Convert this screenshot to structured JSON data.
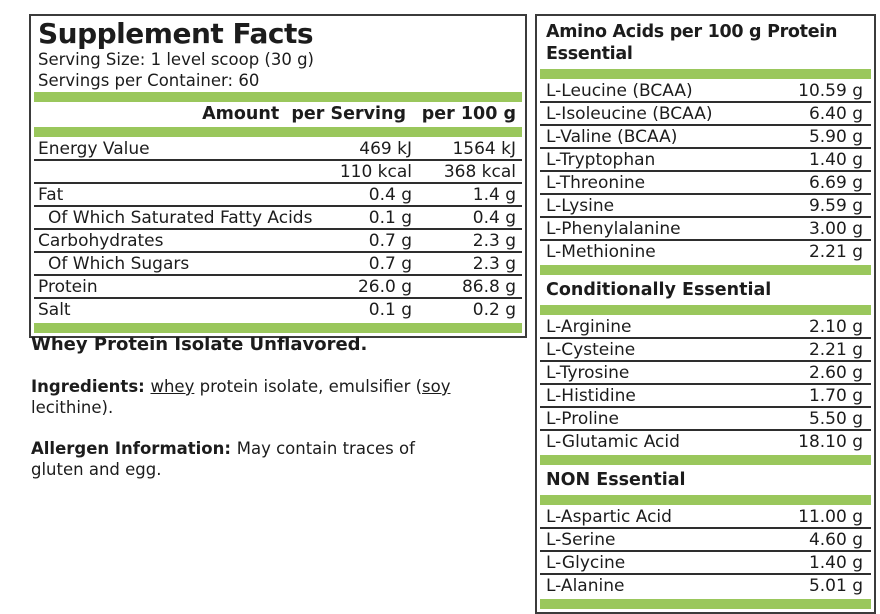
{
  "colors": {
    "accent_green": "#9AC75C",
    "panel_border": "#3B3B3B",
    "line_color": "#2E2E2E",
    "text_color": "#1C1C1C"
  },
  "left_panel": {
    "title": "Supplement Facts",
    "serving_size": "Serving Size: 1 level scoop (30 g)",
    "servings_per_container": "Servings per Container: 60",
    "header": {
      "amount_per_serving": "Amount  per Serving",
      "per_100g": "per 100 g"
    },
    "rows": [
      {
        "name": "Energy Value",
        "per_serving": "469 kJ",
        "per_100g": "1564 kJ",
        "indent": false
      },
      {
        "name": "",
        "per_serving": "110 kcal",
        "per_100g": "368 kcal",
        "indent": false
      },
      {
        "name": "Fat",
        "per_serving": "0.4 g",
        "per_100g": "1.4 g",
        "indent": false
      },
      {
        "name": "Of Which Saturated Fatty Acids",
        "per_serving": "0.1 g",
        "per_100g": "0.4 g",
        "indent": true
      },
      {
        "name": "Carbohydrates",
        "per_serving": "0.7 g",
        "per_100g": "2.3 g",
        "indent": false
      },
      {
        "name": "Of Which Sugars",
        "per_serving": "0.7 g",
        "per_100g": "2.3 g",
        "indent": true
      },
      {
        "name": "Protein",
        "per_serving": "26.0 g",
        "per_100g": "86.8 g",
        "indent": false
      },
      {
        "name": "Salt",
        "per_serving": "0.1 g",
        "per_100g": "0.2 g",
        "indent": false
      }
    ]
  },
  "notes": {
    "product_name": "Whey Protein Isolate Unflavored.",
    "ingredients": {
      "label": "Ingredients: ",
      "whey": "whey",
      "mid": " protein isolate, emulsifier (",
      "soy": "soy",
      "line2": "lecithine)."
    },
    "allergen": {
      "label": "Allergen Information: ",
      "line1": "May contain traces of",
      "line2": "gluten and egg."
    }
  },
  "amino_panel": {
    "title": "Amino Acids per 100 g Protein",
    "subtitle": "Essential",
    "essential_rows": [
      {
        "name": "L-Leucine (BCAA)",
        "amount": "10.59 g"
      },
      {
        "name": "L-Isoleucine (BCAA)",
        "amount": "6.40 g"
      },
      {
        "name": "L-Valine (BCAA)",
        "amount": "5.90 g"
      },
      {
        "name": "L-Tryptophan",
        "amount": "1.40 g"
      },
      {
        "name": "L-Threonine",
        "amount": "6.69 g"
      },
      {
        "name": "L-Lysine",
        "amount": "9.59 g"
      },
      {
        "name": "L-Phenylalanine",
        "amount": "3.00 g"
      },
      {
        "name": "L-Methionine",
        "amount": "2.21 g"
      }
    ],
    "conditional_heading": "Conditionally Essential",
    "conditional_rows": [
      {
        "name": "L-Arginine",
        "amount": "2.10 g"
      },
      {
        "name": "L-Cysteine",
        "amount": "2.21 g"
      },
      {
        "name": "L-Tyrosine",
        "amount": "2.60 g"
      },
      {
        "name": "L-Histidine",
        "amount": "1.70 g"
      },
      {
        "name": "L-Proline",
        "amount": "5.50 g"
      },
      {
        "name": "L-Glutamic Acid",
        "amount": "18.10 g"
      }
    ],
    "non_essential_heading": "NON Essential",
    "non_essential_rows": [
      {
        "name": "L-Aspartic Acid",
        "amount": "11.00 g"
      },
      {
        "name": "L-Serine",
        "amount": "4.60 g"
      },
      {
        "name": "L-Glycine",
        "amount": "1.40 g"
      },
      {
        "name": "L-Alanine",
        "amount": "5.01 g"
      }
    ]
  }
}
